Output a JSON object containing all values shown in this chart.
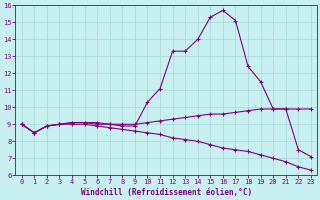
{
  "xlabel": "Windchill (Refroidissement éolien,°C)",
  "x": [
    0,
    1,
    2,
    3,
    4,
    5,
    6,
    7,
    8,
    9,
    10,
    11,
    12,
    13,
    14,
    15,
    16,
    17,
    18,
    19,
    20,
    21,
    22,
    23
  ],
  "line1": [
    9.0,
    8.5,
    8.9,
    9.0,
    9.1,
    9.1,
    9.1,
    9.0,
    9.0,
    9.0,
    9.1,
    9.2,
    9.3,
    9.4,
    9.5,
    9.6,
    9.6,
    9.7,
    9.8,
    9.9,
    9.9,
    9.9,
    9.9,
    9.9
  ],
  "line2": [
    9.0,
    8.5,
    8.9,
    9.0,
    9.1,
    9.1,
    9.0,
    9.0,
    8.9,
    8.9,
    10.3,
    11.1,
    13.3,
    13.3,
    14.0,
    15.3,
    15.7,
    15.1,
    12.4,
    11.5,
    9.9,
    9.9,
    7.5,
    7.1
  ],
  "line3": [
    9.0,
    8.5,
    8.9,
    9.0,
    9.0,
    9.0,
    8.9,
    8.8,
    8.7,
    8.6,
    8.5,
    8.4,
    8.2,
    8.1,
    8.0,
    7.8,
    7.6,
    7.5,
    7.4,
    7.2,
    7.0,
    6.8,
    6.5,
    6.3
  ],
  "line_color": "#800080",
  "bg_color": "#c8f0f0",
  "grid_color": "#a8d8d8",
  "ylim": [
    6,
    16
  ],
  "xlim": [
    -0.5,
    23.5
  ],
  "yticks": [
    6,
    7,
    8,
    9,
    10,
    11,
    12,
    13,
    14,
    15,
    16
  ],
  "xticks": [
    0,
    1,
    2,
    3,
    4,
    5,
    6,
    7,
    8,
    9,
    10,
    11,
    12,
    13,
    14,
    15,
    16,
    17,
    18,
    19,
    20,
    21,
    22,
    23
  ],
  "marker": "+",
  "marker_size": 2.5,
  "linewidth": 0.8,
  "tick_fontsize": 5.0,
  "xlabel_fontsize": 5.5
}
